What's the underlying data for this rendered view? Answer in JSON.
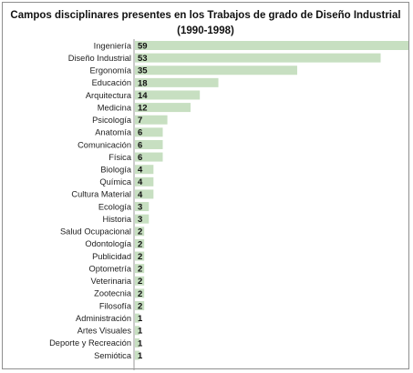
{
  "chart_data": {
    "type": "bar",
    "orientation": "horizontal",
    "title_line1": "Campos disciplinares presentes en los Trabajos de grado de Diseño Industrial",
    "title_line2": "(1990-1998)",
    "categories": [
      "Ingeniería",
      "Diseño Industrial",
      "Ergonomía",
      "Educación",
      "Arquitectura",
      "Medicina",
      "Psicología",
      "Anatomía",
      "Comunicación",
      "Física",
      "Biología",
      "Química",
      "Cultura Material",
      "Ecología",
      "Historia",
      "Salud Ocupacional",
      "Odontología",
      "Publicidad",
      "Optometría",
      "Veterinaria",
      "Zootecnia",
      "Filosofía",
      "Administración",
      "Artes Visuales",
      "Deporte y Recreación",
      "Semiótica"
    ],
    "values": [
      59,
      53,
      35,
      18,
      14,
      12,
      7,
      6,
      6,
      6,
      4,
      4,
      4,
      3,
      3,
      2,
      2,
      2,
      2,
      2,
      2,
      2,
      1,
      1,
      1,
      1
    ],
    "xlim": [
      0,
      59
    ],
    "bar_color": "#c7dfc1",
    "grid": false,
    "legend": "none"
  }
}
